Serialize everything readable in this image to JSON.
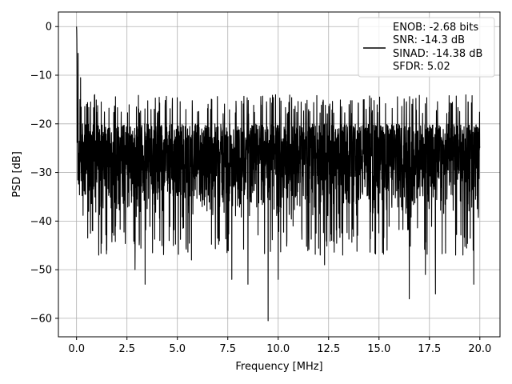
{
  "chart_data": {
    "type": "line",
    "xlabel": "Frequency [MHz]",
    "ylabel": "PSD [dB]",
    "xlim": [
      -0.9,
      21.0
    ],
    "ylim": [
      -63.8,
      3.0
    ],
    "xticks": [
      0.0,
      2.5,
      5.0,
      7.5,
      10.0,
      12.5,
      15.0,
      17.5,
      20.0
    ],
    "xtick_labels": [
      "0.0",
      "2.5",
      "5.0",
      "7.5",
      "10.0",
      "12.5",
      "15.0",
      "17.5",
      "20.0"
    ],
    "yticks": [
      0,
      -10,
      -20,
      -30,
      -40,
      -50,
      -60
    ],
    "ytick_labels": [
      "0",
      "−10",
      "−20",
      "−30",
      "−40",
      "−50",
      "−60"
    ],
    "grid": true,
    "line_color": "#000000",
    "legend": {
      "placement": "top-right",
      "entries": [
        "ENOB: -2.68 bits",
        "SNR: -14.3 dB",
        "SINAD: -14.38 dB",
        "SFDR: 5.02"
      ]
    },
    "series": [
      {
        "x_start": 0.0,
        "x_end": 20.0,
        "noise_floor": [
          -40,
          -20
        ],
        "dips_to": [
          -47,
          -53,
          -50,
          -52,
          -56,
          -60.5,
          -52,
          -49,
          -47,
          -50,
          -52,
          -55,
          -51
        ],
        "peak": {
          "x": 0.0,
          "y": 0.0
        },
        "points": [
          [
            0.0,
            0.0
          ],
          [
            0.02,
            -7.5
          ],
          [
            0.05,
            -19
          ],
          [
            0.08,
            -5.5
          ],
          [
            0.12,
            -26
          ],
          [
            0.2,
            -10.5
          ],
          [
            0.3,
            -20
          ],
          [
            0.4,
            -32
          ],
          [
            0.5,
            -16
          ],
          [
            0.6,
            -38
          ],
          [
            0.7,
            -15.5
          ],
          [
            0.8,
            -42
          ],
          [
            0.9,
            -14
          ],
          [
            1.0,
            -30
          ],
          [
            1.1,
            -47
          ],
          [
            1.3,
            -15
          ],
          [
            1.5,
            -46
          ],
          [
            1.8,
            -16
          ],
          [
            2.2,
            -41
          ],
          [
            2.6,
            -15
          ],
          [
            2.9,
            -50
          ],
          [
            3.2,
            -17
          ],
          [
            3.4,
            -53
          ],
          [
            3.8,
            -15
          ],
          [
            4.2,
            -42
          ],
          [
            4.8,
            -14
          ],
          [
            5.2,
            -40
          ],
          [
            5.7,
            -48
          ],
          [
            6.0,
            -17
          ],
          [
            6.4,
            -45
          ],
          [
            6.9,
            -14
          ],
          [
            7.3,
            -45
          ],
          [
            7.7,
            -52
          ],
          [
            8.2,
            -16
          ],
          [
            8.5,
            -53
          ],
          [
            8.9,
            -17
          ],
          [
            9.5,
            -60.5
          ],
          [
            9.8,
            -18
          ],
          [
            10.0,
            -52
          ],
          [
            10.5,
            -18
          ],
          [
            11.0,
            -45
          ],
          [
            11.7,
            -16
          ],
          [
            12.3,
            -49
          ],
          [
            12.8,
            -17
          ],
          [
            13.2,
            -47
          ],
          [
            13.7,
            -16
          ],
          [
            14.2,
            -44
          ],
          [
            15.0,
            -19
          ],
          [
            15.4,
            -46
          ],
          [
            16.0,
            -17
          ],
          [
            16.5,
            -56
          ],
          [
            16.9,
            -18
          ],
          [
            17.3,
            -51
          ],
          [
            17.8,
            -55
          ],
          [
            18.2,
            -17
          ],
          [
            18.8,
            -47
          ],
          [
            19.2,
            -15
          ],
          [
            19.7,
            -53
          ],
          [
            19.9,
            -20
          ],
          [
            20.0,
            -21
          ]
        ]
      }
    ]
  }
}
